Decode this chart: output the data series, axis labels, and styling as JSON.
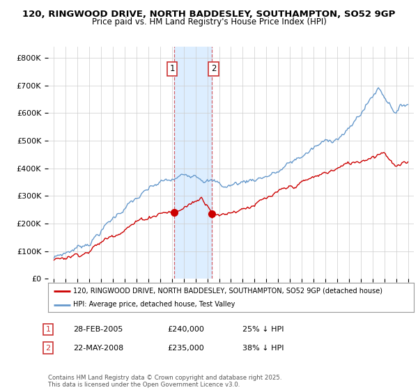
{
  "title1": "120, RINGWOOD DRIVE, NORTH BADDESLEY, SOUTHAMPTON, SO52 9GP",
  "title2": "Price paid vs. HM Land Registry's House Price Index (HPI)",
  "ylabel_ticks": [
    "£0",
    "£100K",
    "£200K",
    "£300K",
    "£400K",
    "£500K",
    "£600K",
    "£700K",
    "£800K"
  ],
  "ytick_values": [
    0,
    100000,
    200000,
    300000,
    400000,
    500000,
    600000,
    700000,
    800000
  ],
  "ylim": [
    0,
    840000
  ],
  "xlim_start": 1994.5,
  "xlim_end": 2025.5,
  "xticks": [
    1995,
    1996,
    1997,
    1998,
    1999,
    2000,
    2001,
    2002,
    2003,
    2004,
    2005,
    2006,
    2007,
    2008,
    2009,
    2010,
    2011,
    2012,
    2013,
    2014,
    2015,
    2016,
    2017,
    2018,
    2019,
    2020,
    2021,
    2022,
    2023,
    2024,
    2025
  ],
  "transaction1_x": 2005.16,
  "transaction1_y": 240000,
  "transaction2_x": 2008.39,
  "transaction2_y": 235000,
  "shaded_x1": 2005.16,
  "shaded_x2": 2008.39,
  "legend_line1": "120, RINGWOOD DRIVE, NORTH BADDESLEY, SOUTHAMPTON, SO52 9GP (detached house)",
  "legend_line2": "HPI: Average price, detached house, Test Valley",
  "ann1_date": "28-FEB-2005",
  "ann1_price": "£240,000",
  "ann1_hpi": "25% ↓ HPI",
  "ann2_date": "22-MAY-2008",
  "ann2_price": "£235,000",
  "ann2_hpi": "38% ↓ HPI",
  "footer": "Contains HM Land Registry data © Crown copyright and database right 2025.\nThis data is licensed under the Open Government Licence v3.0.",
  "red_color": "#cc0000",
  "blue_color": "#6699cc",
  "shaded_color": "#ddeeff",
  "background_color": "#ffffff",
  "grid_color": "#cccccc",
  "label_box_color": "#cc3333"
}
